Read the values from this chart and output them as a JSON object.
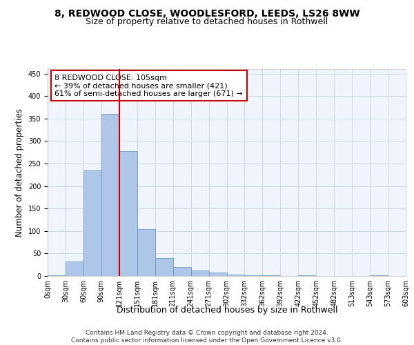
{
  "title_line1": "8, REDWOOD CLOSE, WOODLESFORD, LEEDS, LS26 8WW",
  "title_line2": "Size of property relative to detached houses in Rothwell",
  "xlabel": "Distribution of detached houses by size in Rothwell",
  "ylabel": "Number of detached properties",
  "bar_values": [
    2,
    32,
    235,
    360,
    278,
    105,
    40,
    20,
    13,
    8,
    3,
    2,
    1,
    0,
    1,
    0,
    0,
    0,
    1,
    0
  ],
  "bin_labels": [
    "0sqm",
    "30sqm",
    "60sqm",
    "90sqm",
    "121sqm",
    "151sqm",
    "181sqm",
    "211sqm",
    "241sqm",
    "271sqm",
    "302sqm",
    "332sqm",
    "362sqm",
    "392sqm",
    "422sqm",
    "452sqm",
    "482sqm",
    "513sqm",
    "543sqm",
    "573sqm",
    "603sqm"
  ],
  "bar_color": "#aec6e8",
  "bar_edge_color": "#5a8fc0",
  "grid_color": "#d0d8e8",
  "background_color": "#f0f4fc",
  "red_line_color": "#cc0000",
  "annotation_text": "8 REDWOOD CLOSE: 105sqm\n← 39% of detached houses are smaller (421)\n61% of semi-detached houses are larger (671) →",
  "annotation_box_color": "#ffffff",
  "annotation_box_edge": "#cc0000",
  "ylim": [
    0,
    460
  ],
  "yticks": [
    0,
    50,
    100,
    150,
    200,
    250,
    300,
    350,
    400,
    450
  ],
  "footer_text": "Contains HM Land Registry data © Crown copyright and database right 2024.\nContains public sector information licensed under the Open Government Licence v3.0.",
  "title_fontsize": 10,
  "subtitle_fontsize": 9,
  "axis_label_fontsize": 8.5,
  "tick_fontsize": 7,
  "footer_fontsize": 6.5,
  "annotation_fontsize": 8
}
